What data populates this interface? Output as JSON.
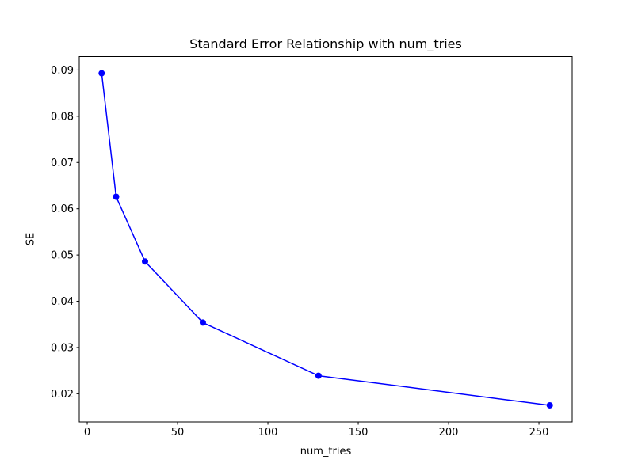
{
  "figure": {
    "background_color": "#ffffff",
    "axes_color": "#000000",
    "accent_color": "#0000ff"
  },
  "chart_data": {
    "type": "line",
    "title": "Standard Error Relationship with num_tries",
    "xlabel": "num_tries",
    "ylabel": "SE",
    "x": [
      8,
      16,
      32,
      64,
      128,
      256
    ],
    "y": [
      0.0893,
      0.0626,
      0.0486,
      0.0354,
      0.0239,
      0.0175
    ],
    "line_color": "#0000ff",
    "marker": "circle",
    "marker_color": "#0000ff",
    "xlim": [
      -4.4,
      268.4
    ],
    "ylim": [
      0.0139,
      0.0929
    ],
    "xticks": [
      0,
      50,
      100,
      150,
      200,
      250
    ],
    "xtick_labels": [
      "0",
      "50",
      "100",
      "150",
      "200",
      "250"
    ],
    "yticks": [
      0.02,
      0.03,
      0.04,
      0.05,
      0.06,
      0.07,
      0.08,
      0.09
    ],
    "ytick_labels": [
      "0.02",
      "0.03",
      "0.04",
      "0.05",
      "0.06",
      "0.07",
      "0.08",
      "0.09"
    ],
    "grid": false,
    "legend": null
  }
}
